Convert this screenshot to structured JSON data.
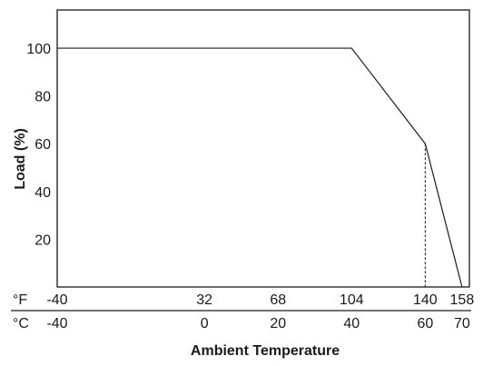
{
  "chart_data": {
    "type": "line",
    "xlabel": "Ambient Temperature",
    "ylabel": "Load (%)",
    "xlim_c": [
      -40,
      72
    ],
    "ylim": [
      0,
      116
    ],
    "yticks": [
      20,
      40,
      60,
      80,
      100
    ],
    "x_axes": [
      {
        "unit": "°F",
        "ticks": [
          "-40",
          "32",
          "68",
          "104",
          "140",
          "158"
        ]
      },
      {
        "unit": "°C",
        "ticks": [
          "-40",
          "0",
          "20",
          "40",
          "60",
          "70"
        ]
      }
    ],
    "tick_positions_c": [
      -40,
      0,
      20,
      40,
      60,
      70
    ],
    "series": [
      {
        "x": [
          -40,
          40,
          60,
          70
        ],
        "y": [
          100,
          100,
          60,
          0
        ]
      }
    ],
    "reference_line": {
      "x": 60,
      "y_from": 0,
      "y_to": 60,
      "style": "dashed"
    },
    "grid": false,
    "line_color": "#1a1a1a"
  }
}
